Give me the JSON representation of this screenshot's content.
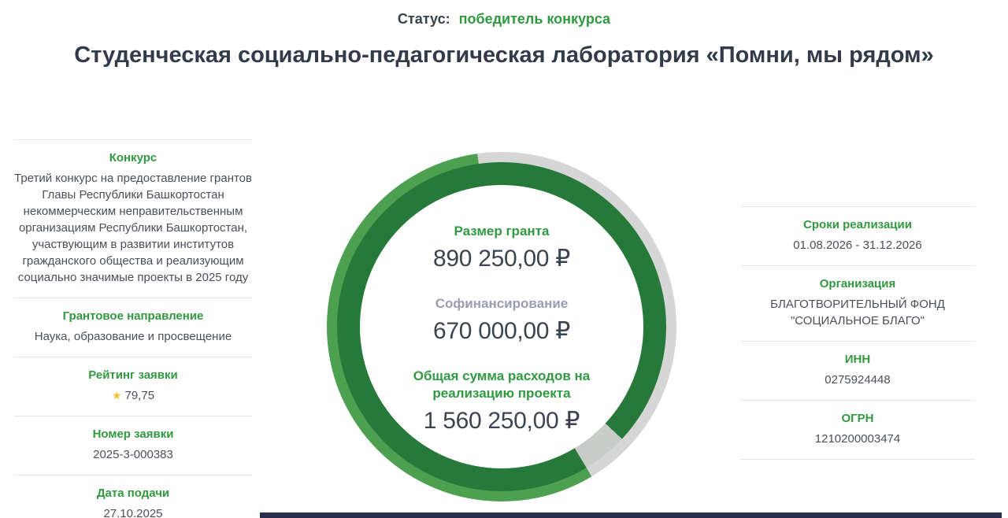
{
  "status": {
    "label": "Статус:",
    "value": "победитель конкурса"
  },
  "title": "Студенческая социально-педагогическая лаборатория «Помни, мы рядом»",
  "left_panel": {
    "sections": [
      {
        "heading": "Конкурс",
        "value": "Третий конкурс на предоставление грантов Главы Республики Башкортостан некоммерческим неправительственным организациям Республики Башкортостан, участвующим в развитии институтов гражданского общества и реализующим социально значимые проекты в 2025 году"
      },
      {
        "heading": "Грантовое направление",
        "value": "Наука, образование и просвещение"
      },
      {
        "heading": "Рейтинг заявки",
        "value": "79,75",
        "icon": "star-icon"
      },
      {
        "heading": "Номер заявки",
        "value": "2025-3-000383"
      },
      {
        "heading": "Дата подачи",
        "value": "27.10.2025"
      }
    ]
  },
  "right_panel": {
    "sections": [
      {
        "heading": "Сроки реализации",
        "value": "01.08.2026 - 31.12.2026"
      },
      {
        "heading": "Организация",
        "value": "БЛАГОТВОРИТЕЛЬНЫЙ ФОНД \"СОЦИАЛЬНОЕ БЛАГО\""
      },
      {
        "heading": "ИНН",
        "value": "0275924448"
      },
      {
        "heading": "ОГРН",
        "value": "1210200003474"
      }
    ]
  },
  "donut": {
    "grant_label": "Размер гранта",
    "grant_value": "890 250,00 ₽",
    "cofinance_label": "Софинансирование",
    "cofinance_value": "670 000,00 ₽",
    "total_label": "Общая сумма расходов на реализацию проекта",
    "total_value": "1 560 250,00 ₽"
  },
  "chart_data": {
    "type": "pie",
    "subtype": "donut",
    "series": [
      {
        "name": "Размер гранта",
        "value": 890250.0,
        "share_pct": 57.06,
        "color": "#27793a"
      },
      {
        "name": "Софинансирование",
        "value": 670000.0,
        "share_pct": 42.94,
        "color": "#d6d6d6"
      }
    ],
    "total": {
      "name": "Общая сумма расходов на реализацию проекта",
      "value": 1560250.0
    },
    "currency": "RUB",
    "legend_position": "inside-center",
    "start_angle_deg": 149,
    "direction": "clockwise"
  },
  "colors": {
    "accent_green": "#31993f",
    "ring_dark_green": "#27793a",
    "ring_light_green": "#4ca04f",
    "ring_gray": "#d6d6d6",
    "cofinance_label_gray": "#9b9cb0",
    "star_yellow": "#f2c230",
    "title_text": "#333a49",
    "body_text": "#4b5057",
    "bottom_bar_navy": "#272f4d"
  }
}
